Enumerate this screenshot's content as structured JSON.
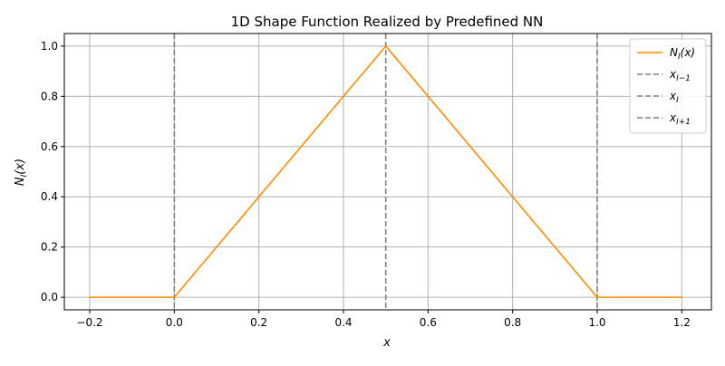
{
  "chart_data": {
    "type": "line",
    "title": "1D Shape Function Realized by Predefined NN",
    "xlabel": "x",
    "ylabel": {
      "base": "N",
      "sub": "I",
      "arg": "(x)"
    },
    "xlim": [
      -0.26,
      1.27
    ],
    "ylim": [
      -0.05,
      1.05
    ],
    "x_ticks": [
      -0.2,
      0.0,
      0.2,
      0.4,
      0.6,
      0.8,
      1.0,
      1.2
    ],
    "x_tick_labels": [
      "−0.2",
      "0.0",
      "0.2",
      "0.4",
      "0.6",
      "0.8",
      "1.0",
      "1.2"
    ],
    "y_ticks": [
      0.0,
      0.2,
      0.4,
      0.6,
      0.8,
      1.0
    ],
    "y_tick_labels": [
      "0.0",
      "0.2",
      "0.4",
      "0.6",
      "0.8",
      "1.0"
    ],
    "grid": true,
    "legend_position": "top-right",
    "series": [
      {
        "name": "N_I(x)",
        "label": {
          "base": "N",
          "sub": "I",
          "arg": "(x)"
        },
        "color": "#ff8c00",
        "style": "solid",
        "x": [
          -0.2,
          0.0,
          0.5,
          1.0,
          1.2
        ],
        "y": [
          0.0,
          0.0,
          1.0,
          0.0,
          0.0
        ]
      }
    ],
    "vlines": [
      {
        "name": "x_{I-1}",
        "label": {
          "base": "x",
          "sub": "I−1"
        },
        "x": 0.0,
        "color": "#808080",
        "style": "dashed"
      },
      {
        "name": "x_I",
        "label": {
          "base": "x",
          "sub": "I"
        },
        "x": 0.5,
        "color": "#808080",
        "style": "dashed"
      },
      {
        "name": "x_{I+1}",
        "label": {
          "base": "x",
          "sub": "I+1"
        },
        "x": 1.0,
        "color": "#808080",
        "style": "dashed"
      }
    ]
  }
}
